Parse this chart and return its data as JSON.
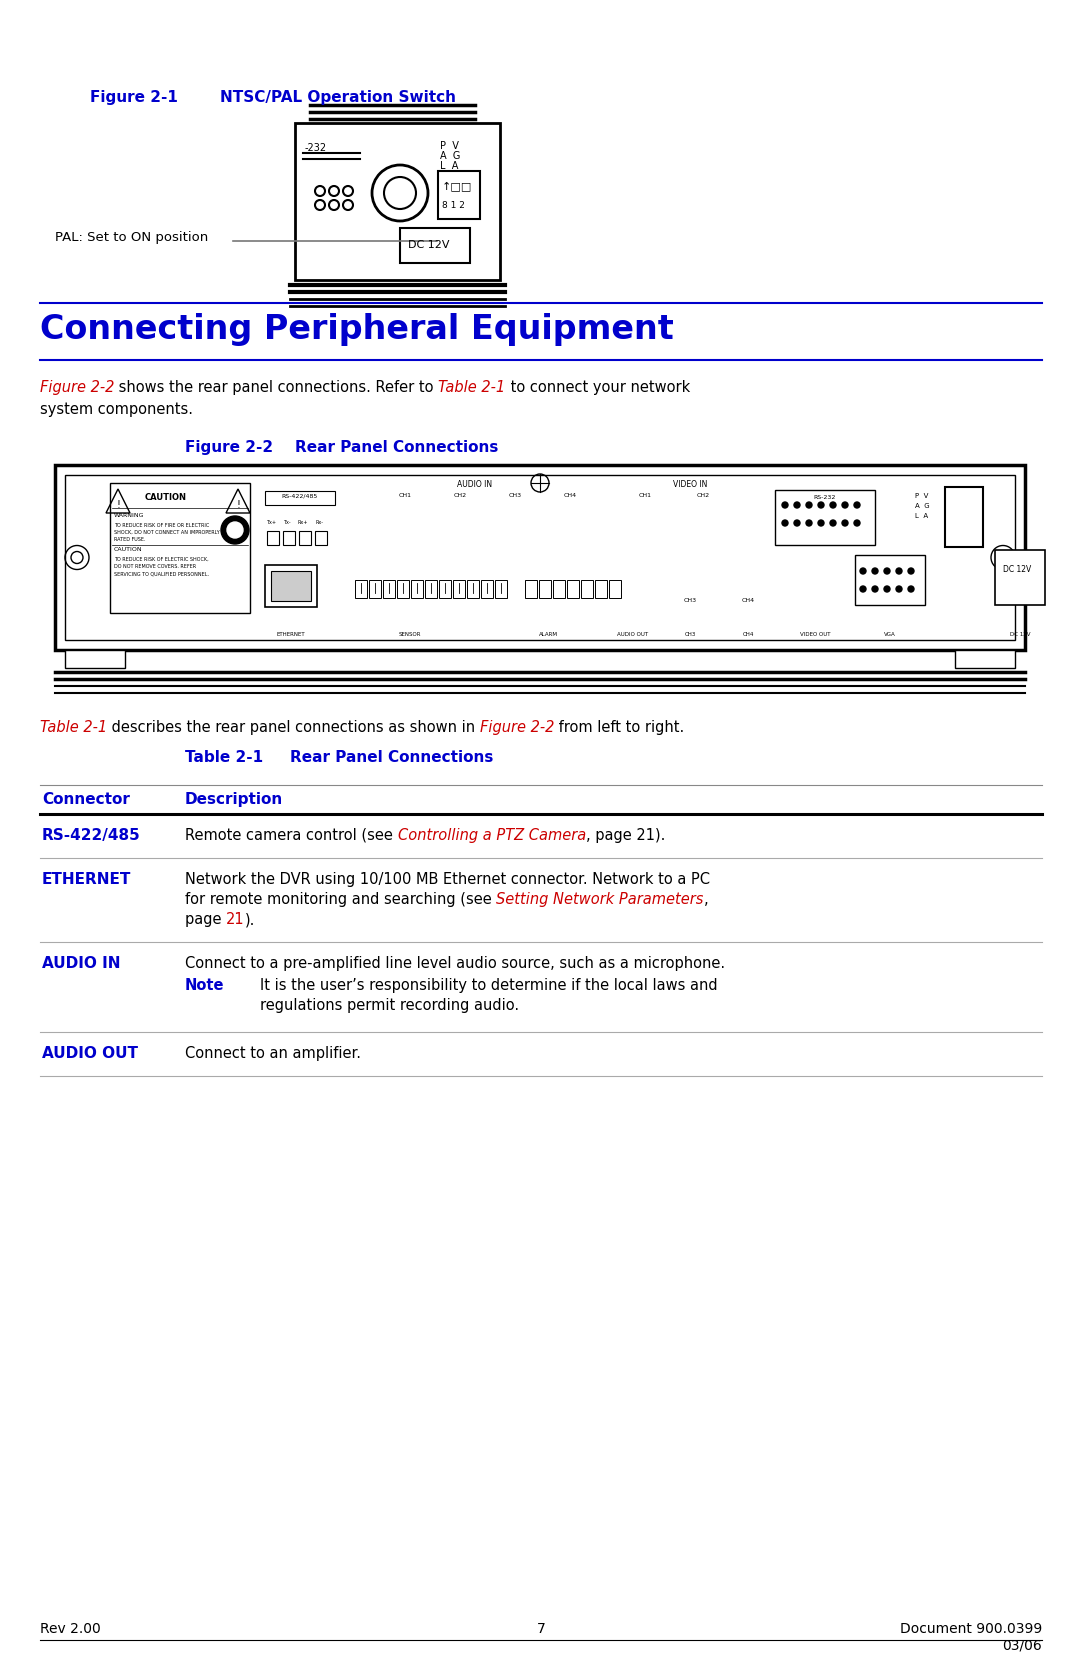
{
  "bg_color": "#ffffff",
  "blue": "#0000cc",
  "red": "#cc0000",
  "black": "#000000",
  "fig1_label": "Figure 2-1",
  "fig1_title": "NTSC/PAL Operation Switch",
  "fig1_caption": "PAL: Set to ON position",
  "section_title": "Connecting Peripheral Equipment",
  "fig2_label": "Figure 2-2",
  "fig2_title": "Rear Panel Connections",
  "table_intro_parts": [
    {
      "text": "Table 2-1",
      "italic": true,
      "color": "#cc0000"
    },
    {
      "text": " describes the rear panel connections as shown in ",
      "italic": false,
      "color": "#000000"
    },
    {
      "text": "Figure 2-2",
      "italic": true,
      "color": "#cc0000"
    },
    {
      "text": " from left to right.",
      "italic": false,
      "color": "#000000"
    }
  ],
  "table_label": "Table 2-1",
  "table_title": "Rear Panel Connections",
  "col_connector": "Connector",
  "col_description": "Description",
  "rows": [
    {
      "connector": "RS-422/485",
      "desc_lines": [
        [
          {
            "text": "Remote camera control (see ",
            "color": "#000000",
            "italic": false
          },
          {
            "text": "Controlling a PTZ Camera",
            "color": "#cc0000",
            "italic": true
          },
          {
            "text": ", page 21).",
            "color": "#000000",
            "italic": false
          }
        ]
      ],
      "note": null
    },
    {
      "connector": "ETHERNET",
      "desc_lines": [
        [
          {
            "text": "Network the DVR using 10/100 MB Ethernet connector. Network to a PC",
            "color": "#000000",
            "italic": false
          }
        ],
        [
          {
            "text": "for remote monitoring and searching (see ",
            "color": "#000000",
            "italic": false
          },
          {
            "text": "Setting Network Parameters",
            "color": "#cc0000",
            "italic": true
          },
          {
            "text": ",",
            "color": "#000000",
            "italic": false
          }
        ],
        [
          {
            "text": "page ",
            "color": "#000000",
            "italic": false
          },
          {
            "text": "21",
            "color": "#cc0000",
            "italic": false
          },
          {
            "text": ").",
            "color": "#000000",
            "italic": false
          }
        ]
      ],
      "note": null
    },
    {
      "connector": "AUDIO IN",
      "desc_lines": [
        [
          {
            "text": "Connect to a pre-amplified line level audio source, such as a microphone.",
            "color": "#000000",
            "italic": false
          }
        ]
      ],
      "note": [
        "It is the user’s responsibility to determine if the local laws and",
        "regulations permit recording audio."
      ]
    },
    {
      "connector": "AUDIO OUT",
      "desc_lines": [
        [
          {
            "text": "Connect to an amplifier.",
            "color": "#000000",
            "italic": false
          }
        ]
      ],
      "note": null
    }
  ],
  "footer_left": "Rev 2.00",
  "footer_center": "7",
  "footer_right": "Document 900.0399\n03/06"
}
